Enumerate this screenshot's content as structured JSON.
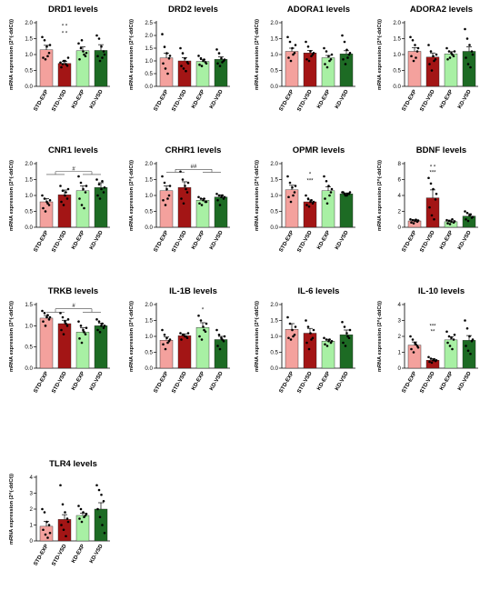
{
  "figure": {
    "categories": [
      "STD-EXP",
      "STD-VSD",
      "KD-EXP",
      "KD-VSD"
    ],
    "bar_colors": [
      "#f4a19d",
      "#a31515",
      "#a8f0a4",
      "#1d6b24"
    ],
    "dot_color": "#000000",
    "error_color": "#000000"
  },
  "chart_data": [
    {
      "type": "bar",
      "title": "DRD1 levels",
      "ylabel": "mRNA expression (2^(-ddCt))",
      "categories": [
        "STD-EXP",
        "STD-VSD",
        "KD-EXP",
        "KD-VSD"
      ],
      "values": [
        1.15,
        0.72,
        1.12,
        1.13
      ],
      "errors": [
        0.14,
        0.06,
        0.12,
        0.18
      ],
      "ylim": [
        0,
        2
      ],
      "yticks": [
        "0.0",
        "0.5",
        "1.0",
        "1.5",
        "2.0"
      ],
      "ytick_values": [
        0,
        0.5,
        1.0,
        1.5,
        2.0
      ],
      "points": [
        [
          1.55,
          1.45,
          1.25,
          1.05,
          0.9,
          0.85,
          0.95,
          1.3
        ],
        [
          0.75,
          0.7,
          0.8,
          0.65,
          0.6,
          0.8,
          0.7,
          0.9
        ],
        [
          1.35,
          1.2,
          1.1,
          0.95,
          0.85,
          1.45,
          1.0,
          1.05
        ],
        [
          1.6,
          1.5,
          1.25,
          1.1,
          0.95,
          0.8,
          0.9,
          1.0
        ]
      ],
      "annotations": [
        {
          "category": 1,
          "text": "* *",
          "y": 1.85
        },
        {
          "category": 1,
          "text": "* *",
          "y": 1.62
        }
      ],
      "brackets": []
    },
    {
      "type": "bar",
      "title": "DRD2 levels",
      "ylabel": "mRNA expression (2^(-ddCt))",
      "categories": [
        "STD-EXP",
        "STD-VSD",
        "KD-EXP",
        "KD-VSD"
      ],
      "values": [
        1.12,
        1.0,
        0.98,
        1.06
      ],
      "errors": [
        0.18,
        0.12,
        0.07,
        0.1
      ],
      "ylim": [
        0,
        2.5
      ],
      "yticks": [
        "0.0",
        "0.5",
        "1.0",
        "1.5",
        "2.0",
        "2.5"
      ],
      "ytick_values": [
        0,
        0.5,
        1.0,
        1.5,
        2.0,
        2.5
      ],
      "points": [
        [
          2.05,
          1.55,
          1.3,
          1.1,
          0.9,
          0.7,
          0.5,
          1.2
        ],
        [
          1.5,
          1.3,
          1.1,
          0.95,
          0.8,
          0.7,
          0.6,
          0.9
        ],
        [
          1.2,
          1.1,
          1.0,
          0.95,
          0.85,
          0.8,
          1.05,
          0.9
        ],
        [
          1.45,
          1.3,
          1.1,
          1.0,
          0.9,
          0.8,
          0.95,
          1.05
        ]
      ],
      "annotations": [],
      "brackets": []
    },
    {
      "type": "bar",
      "title": "ADORA1 levels",
      "ylabel": "mRNA expression (2^(-ddCt))",
      "categories": [
        "STD-EXP",
        "STD-VSD",
        "KD-EXP",
        "KD-VSD"
      ],
      "values": [
        1.1,
        1.05,
        0.9,
        1.02
      ],
      "errors": [
        0.1,
        0.08,
        0.07,
        0.1
      ],
      "ylim": [
        0,
        2
      ],
      "yticks": [
        "0.0",
        "0.5",
        "1.0",
        "1.5",
        "2.0"
      ],
      "ytick_values": [
        0,
        0.5,
        1.0,
        1.5,
        2.0
      ],
      "points": [
        [
          1.55,
          1.4,
          1.2,
          1.05,
          0.9,
          0.8,
          1.0,
          1.3
        ],
        [
          1.4,
          1.25,
          1.1,
          1.0,
          0.85,
          0.8,
          0.95,
          1.05
        ],
        [
          1.2,
          1.1,
          0.95,
          0.85,
          0.7,
          0.6,
          0.8,
          1.0
        ],
        [
          1.6,
          1.4,
          1.15,
          1.0,
          0.85,
          0.7,
          0.9,
          1.05
        ]
      ],
      "annotations": [],
      "brackets": []
    },
    {
      "type": "bar",
      "title": "ADORA2 levels",
      "ylabel": "mRNA expression (2^(-ddCt))",
      "categories": [
        "STD-EXP",
        "STD-VSD",
        "KD-EXP",
        "KD-VSD"
      ],
      "values": [
        1.1,
        0.92,
        1.02,
        1.1
      ],
      "errors": [
        0.12,
        0.13,
        0.07,
        0.14
      ],
      "ylim": [
        0,
        2
      ],
      "yticks": [
        "0.0",
        "0.5",
        "1.0",
        "1.5",
        "2.0"
      ],
      "ytick_values": [
        0,
        0.5,
        1.0,
        1.5,
        2.0
      ],
      "points": [
        [
          1.55,
          1.45,
          1.3,
          1.1,
          0.95,
          0.8,
          0.9,
          1.2
        ],
        [
          1.3,
          1.1,
          0.95,
          0.85,
          0.7,
          0.5,
          0.8,
          1.0
        ],
        [
          1.2,
          1.1,
          1.05,
          0.95,
          0.85,
          0.9,
          1.0,
          1.1
        ],
        [
          1.8,
          1.5,
          1.3,
          1.1,
          0.9,
          0.7,
          0.6,
          1.0
        ]
      ],
      "annotations": [],
      "brackets": []
    },
    {
      "type": "bar",
      "title": "CNR1 levels",
      "ylabel": "mRNA expression (2^(-ddCt))",
      "categories": [
        "STD-EXP",
        "STD-VSD",
        "KD-EXP",
        "KD-VSD"
      ],
      "values": [
        0.8,
        1.02,
        1.15,
        1.25
      ],
      "errors": [
        0.1,
        0.15,
        0.15,
        0.15
      ],
      "ylim": [
        0,
        2
      ],
      "yticks": [
        "0.0",
        "0.5",
        "1.0",
        "1.5",
        "2.0"
      ],
      "ytick_values": [
        0,
        0.5,
        1.0,
        1.5,
        2.0
      ],
      "points": [
        [
          1.0,
          0.9,
          0.8,
          0.7,
          0.6,
          0.5,
          0.75,
          0.85
        ],
        [
          1.3,
          1.15,
          1.0,
          0.9,
          0.8,
          0.7,
          1.1,
          1.2
        ],
        [
          1.6,
          1.4,
          1.2,
          1.1,
          0.9,
          0.7,
          0.6,
          1.3
        ],
        [
          1.5,
          1.35,
          1.2,
          1.1,
          1.0,
          0.9,
          1.45,
          1.25
        ]
      ],
      "annotations": [],
      "brackets": [
        {
          "text": "#",
          "y": 1.75,
          "drops": 1.66,
          "left": [
            0,
            1
          ],
          "right": [
            2,
            3
          ]
        }
      ]
    },
    {
      "type": "bar",
      "title": "CRHR1 levels",
      "ylabel": "mRNA expression (2^(-ddCt))",
      "categories": [
        "STD-EXP",
        "STD-VSD",
        "KD-EXP",
        "KD-VSD"
      ],
      "values": [
        1.15,
        1.25,
        0.85,
        0.95
      ],
      "errors": [
        0.15,
        0.18,
        0.05,
        0.07
      ],
      "ylim": [
        0,
        2
      ],
      "yticks": [
        "0.0",
        "0.5",
        "1.0",
        "1.5",
        "2.0"
      ],
      "ytick_values": [
        0,
        0.5,
        1.0,
        1.5,
        2.0
      ],
      "points": [
        [
          1.6,
          1.4,
          1.2,
          1.0,
          0.85,
          0.7,
          0.9,
          1.3
        ],
        [
          1.75,
          1.5,
          1.3,
          1.1,
          0.9,
          0.75,
          1.2,
          1.4
        ],
        [
          0.95,
          0.9,
          0.85,
          0.8,
          0.75,
          0.7,
          0.9,
          0.8
        ],
        [
          1.05,
          1.0,
          0.95,
          0.9,
          0.85,
          0.7,
          1.0,
          0.95
        ]
      ],
      "annotations": [],
      "brackets": [
        {
          "text": "##",
          "y": 1.82,
          "drops": 1.73,
          "left": [
            0,
            1
          ],
          "right": [
            2,
            3
          ]
        }
      ]
    },
    {
      "type": "bar",
      "title": "OPMR levels",
      "ylabel": "mRNA expression (2^(-ddCt))",
      "categories": [
        "STD-EXP",
        "STD-VSD",
        "KD-EXP",
        "KD-VSD"
      ],
      "values": [
        1.18,
        0.8,
        1.15,
        1.05
      ],
      "errors": [
        0.14,
        0.06,
        0.12,
        0.03
      ],
      "ylim": [
        0,
        2
      ],
      "yticks": [
        "0.0",
        "0.5",
        "1.0",
        "1.5",
        "2.0"
      ],
      "ytick_values": [
        0,
        0.5,
        1.0,
        1.5,
        2.0
      ],
      "points": [
        [
          1.6,
          1.4,
          1.25,
          1.1,
          0.95,
          0.8,
          1.0,
          1.3
        ],
        [
          1.0,
          0.9,
          0.8,
          0.75,
          0.7,
          0.65,
          0.85,
          0.8
        ],
        [
          1.6,
          1.45,
          1.3,
          1.1,
          0.9,
          0.75,
          1.0,
          1.2
        ],
        [
          1.1,
          1.05,
          1.0,
          1.05,
          1.1,
          1.0,
          1.05,
          1.1
        ]
      ],
      "annotations": [
        {
          "category": 1,
          "text": "*",
          "y": 1.62
        },
        {
          "category": 1,
          "text": "***",
          "y": 1.42
        }
      ],
      "brackets": []
    },
    {
      "type": "bar",
      "title": "BDNF levels",
      "ylabel": "mRNA expression (2^(-ddCt))",
      "categories": [
        "STD-EXP",
        "STD-VSD",
        "KD-EXP",
        "KD-VSD"
      ],
      "values": [
        0.8,
        3.7,
        0.7,
        1.4
      ],
      "errors": [
        0.15,
        1.0,
        0.2,
        0.3
      ],
      "ylim": [
        0,
        8
      ],
      "yticks": [
        "0",
        "2",
        "4",
        "6",
        "8"
      ],
      "ytick_values": [
        0,
        2,
        4,
        6,
        8
      ],
      "points": [
        [
          1.0,
          0.9,
          0.8,
          0.7,
          0.6,
          0.5,
          0.95,
          0.85
        ],
        [
          6.2,
          5.5,
          4.8,
          3.5,
          2.5,
          1.5,
          1.0,
          4.2
        ],
        [
          0.9,
          0.8,
          0.7,
          0.6,
          0.5,
          0.4,
          1.0,
          0.75
        ],
        [
          2.0,
          1.8,
          1.5,
          1.2,
          1.0,
          0.8,
          1.6,
          1.3
        ]
      ],
      "annotations": [
        {
          "category": 1,
          "text": "* *",
          "y": 7.4
        },
        {
          "category": 1,
          "text": "***",
          "y": 6.7
        }
      ],
      "brackets": []
    },
    {
      "type": "bar",
      "title": "TRKB levels",
      "ylabel": "mRNA expression (2^(-ddCt))",
      "categories": [
        "STD-EXP",
        "STD-VSD",
        "KD-EXP",
        "KD-VSD"
      ],
      "values": [
        1.18,
        1.05,
        0.85,
        1.0
      ],
      "errors": [
        0.06,
        0.08,
        0.1,
        0.06
      ],
      "ylim": [
        0,
        1.5
      ],
      "yticks": [
        "0.0",
        "0.5",
        "1.0",
        "1.5"
      ],
      "ytick_values": [
        0,
        0.5,
        1.0,
        1.5
      ],
      "points": [
        [
          1.35,
          1.3,
          1.2,
          1.15,
          1.1,
          1.0,
          1.25,
          1.2
        ],
        [
          1.3,
          1.2,
          1.1,
          1.0,
          0.9,
          0.8,
          1.05,
          1.15
        ],
        [
          1.1,
          1.0,
          0.9,
          0.8,
          0.7,
          0.6,
          0.85,
          0.95
        ],
        [
          1.15,
          1.1,
          1.0,
          0.95,
          0.9,
          0.85,
          1.05,
          1.0
        ]
      ],
      "annotations": [],
      "brackets": [
        {
          "text": "#",
          "y": 1.4,
          "drops": 1.32,
          "left": [
            0,
            1
          ],
          "right": [
            2,
            3
          ]
        }
      ]
    },
    {
      "type": "bar",
      "title": "IL-1B levels",
      "ylabel": "mRNA expression (2^(-ddCt))",
      "categories": [
        "STD-EXP",
        "STD-VSD",
        "KD-EXP",
        "KD-VSD"
      ],
      "values": [
        0.88,
        1.02,
        1.28,
        0.9
      ],
      "errors": [
        0.1,
        0.06,
        0.15,
        0.1
      ],
      "ylim": [
        0,
        2
      ],
      "yticks": [
        "0.0",
        "0.5",
        "1.0",
        "1.5",
        "2.0"
      ],
      "ytick_values": [
        0,
        0.5,
        1.0,
        1.5,
        2.0
      ],
      "points": [
        [
          1.2,
          1.05,
          0.95,
          0.85,
          0.75,
          0.6,
          0.8,
          0.9
        ],
        [
          1.1,
          1.05,
          1.0,
          0.95,
          0.9,
          1.05,
          1.0,
          1.1
        ],
        [
          1.65,
          1.5,
          1.3,
          1.15,
          1.0,
          0.9,
          1.2,
          1.4
        ],
        [
          1.2,
          1.05,
          0.95,
          0.85,
          0.7,
          0.6,
          0.9,
          1.0
        ]
      ],
      "annotations": [
        {
          "category": 2,
          "text": "*",
          "y": 1.78
        }
      ],
      "brackets": []
    },
    {
      "type": "bar",
      "title": "IL-6 levels",
      "ylabel": "mRNA expression (2^(-ddCt))",
      "categories": [
        "STD-EXP",
        "STD-VSD",
        "KD-EXP",
        "KD-VSD"
      ],
      "values": [
        1.22,
        1.1,
        0.85,
        1.05
      ],
      "errors": [
        0.18,
        0.15,
        0.06,
        0.15
      ],
      "ylim": [
        0,
        2
      ],
      "yticks": [
        "0.0",
        "0.5",
        "1.0",
        "1.5",
        "2.0"
      ],
      "ytick_values": [
        0,
        0.5,
        1.0,
        1.5,
        2.0
      ],
      "points": [
        [
          1.6,
          1.4,
          1.2,
          1.05,
          0.95,
          0.9,
          1.0,
          1.3
        ],
        [
          1.5,
          1.3,
          1.1,
          0.95,
          0.8,
          0.6,
          0.9,
          1.2
        ],
        [
          0.95,
          0.9,
          0.85,
          0.8,
          0.75,
          0.7,
          0.9,
          0.85
        ],
        [
          1.45,
          1.3,
          1.1,
          0.95,
          0.8,
          0.7,
          1.0,
          1.2
        ]
      ],
      "annotations": [],
      "brackets": []
    },
    {
      "type": "bar",
      "title": "IL-10 levels",
      "ylabel": "mRNA expression (2^(-ddCt))",
      "categories": [
        "STD-EXP",
        "STD-VSD",
        "KD-EXP",
        "KD-VSD"
      ],
      "values": [
        1.45,
        0.5,
        1.78,
        1.75
      ],
      "errors": [
        0.2,
        0.1,
        0.2,
        0.3
      ],
      "ylim": [
        0,
        4
      ],
      "yticks": [
        "0",
        "1",
        "2",
        "3",
        "4"
      ],
      "ytick_values": [
        0,
        1,
        2,
        3,
        4
      ],
      "points": [
        [
          2.0,
          1.8,
          1.6,
          1.4,
          1.2,
          1.0,
          1.5,
          1.3
        ],
        [
          0.7,
          0.6,
          0.5,
          0.45,
          0.4,
          0.35,
          0.55,
          0.5
        ],
        [
          2.3,
          2.0,
          1.9,
          1.8,
          1.6,
          1.4,
          1.2,
          2.1
        ],
        [
          3.0,
          2.5,
          2.0,
          1.7,
          1.4,
          1.1,
          0.9,
          1.8
        ]
      ],
      "annotations": [
        {
          "category": 1,
          "text": "***",
          "y": 2.55
        },
        {
          "category": 1,
          "text": "**",
          "y": 2.2
        }
      ],
      "brackets": []
    },
    {
      "type": "bar",
      "title": "TLR4 levels",
      "ylabel": "mRNA expression (2^(-ddCt))",
      "categories": [
        "STD-EXP",
        "STD-VSD",
        "KD-EXP",
        "KD-VSD"
      ],
      "values": [
        0.92,
        1.35,
        1.6,
        2.0
      ],
      "errors": [
        0.3,
        0.3,
        0.15,
        0.4
      ],
      "ylim": [
        0,
        4
      ],
      "yticks": [
        "0",
        "1",
        "2",
        "3",
        "4"
      ],
      "ytick_values": [
        0,
        1,
        2,
        3,
        4
      ],
      "points": [
        [
          2.0,
          1.8,
          1.2,
          1.0,
          0.7,
          0.4,
          0.2,
          0.5
        ],
        [
          3.5,
          2.3,
          1.8,
          1.4,
          1.0,
          0.7,
          0.3,
          1.2
        ],
        [
          2.2,
          2.0,
          1.8,
          1.6,
          1.4,
          1.2,
          1.5,
          1.7
        ],
        [
          3.5,
          3.2,
          2.9,
          2.5,
          2.0,
          1.5,
          1.0,
          0.5
        ]
      ],
      "annotations": [],
      "brackets": []
    }
  ]
}
